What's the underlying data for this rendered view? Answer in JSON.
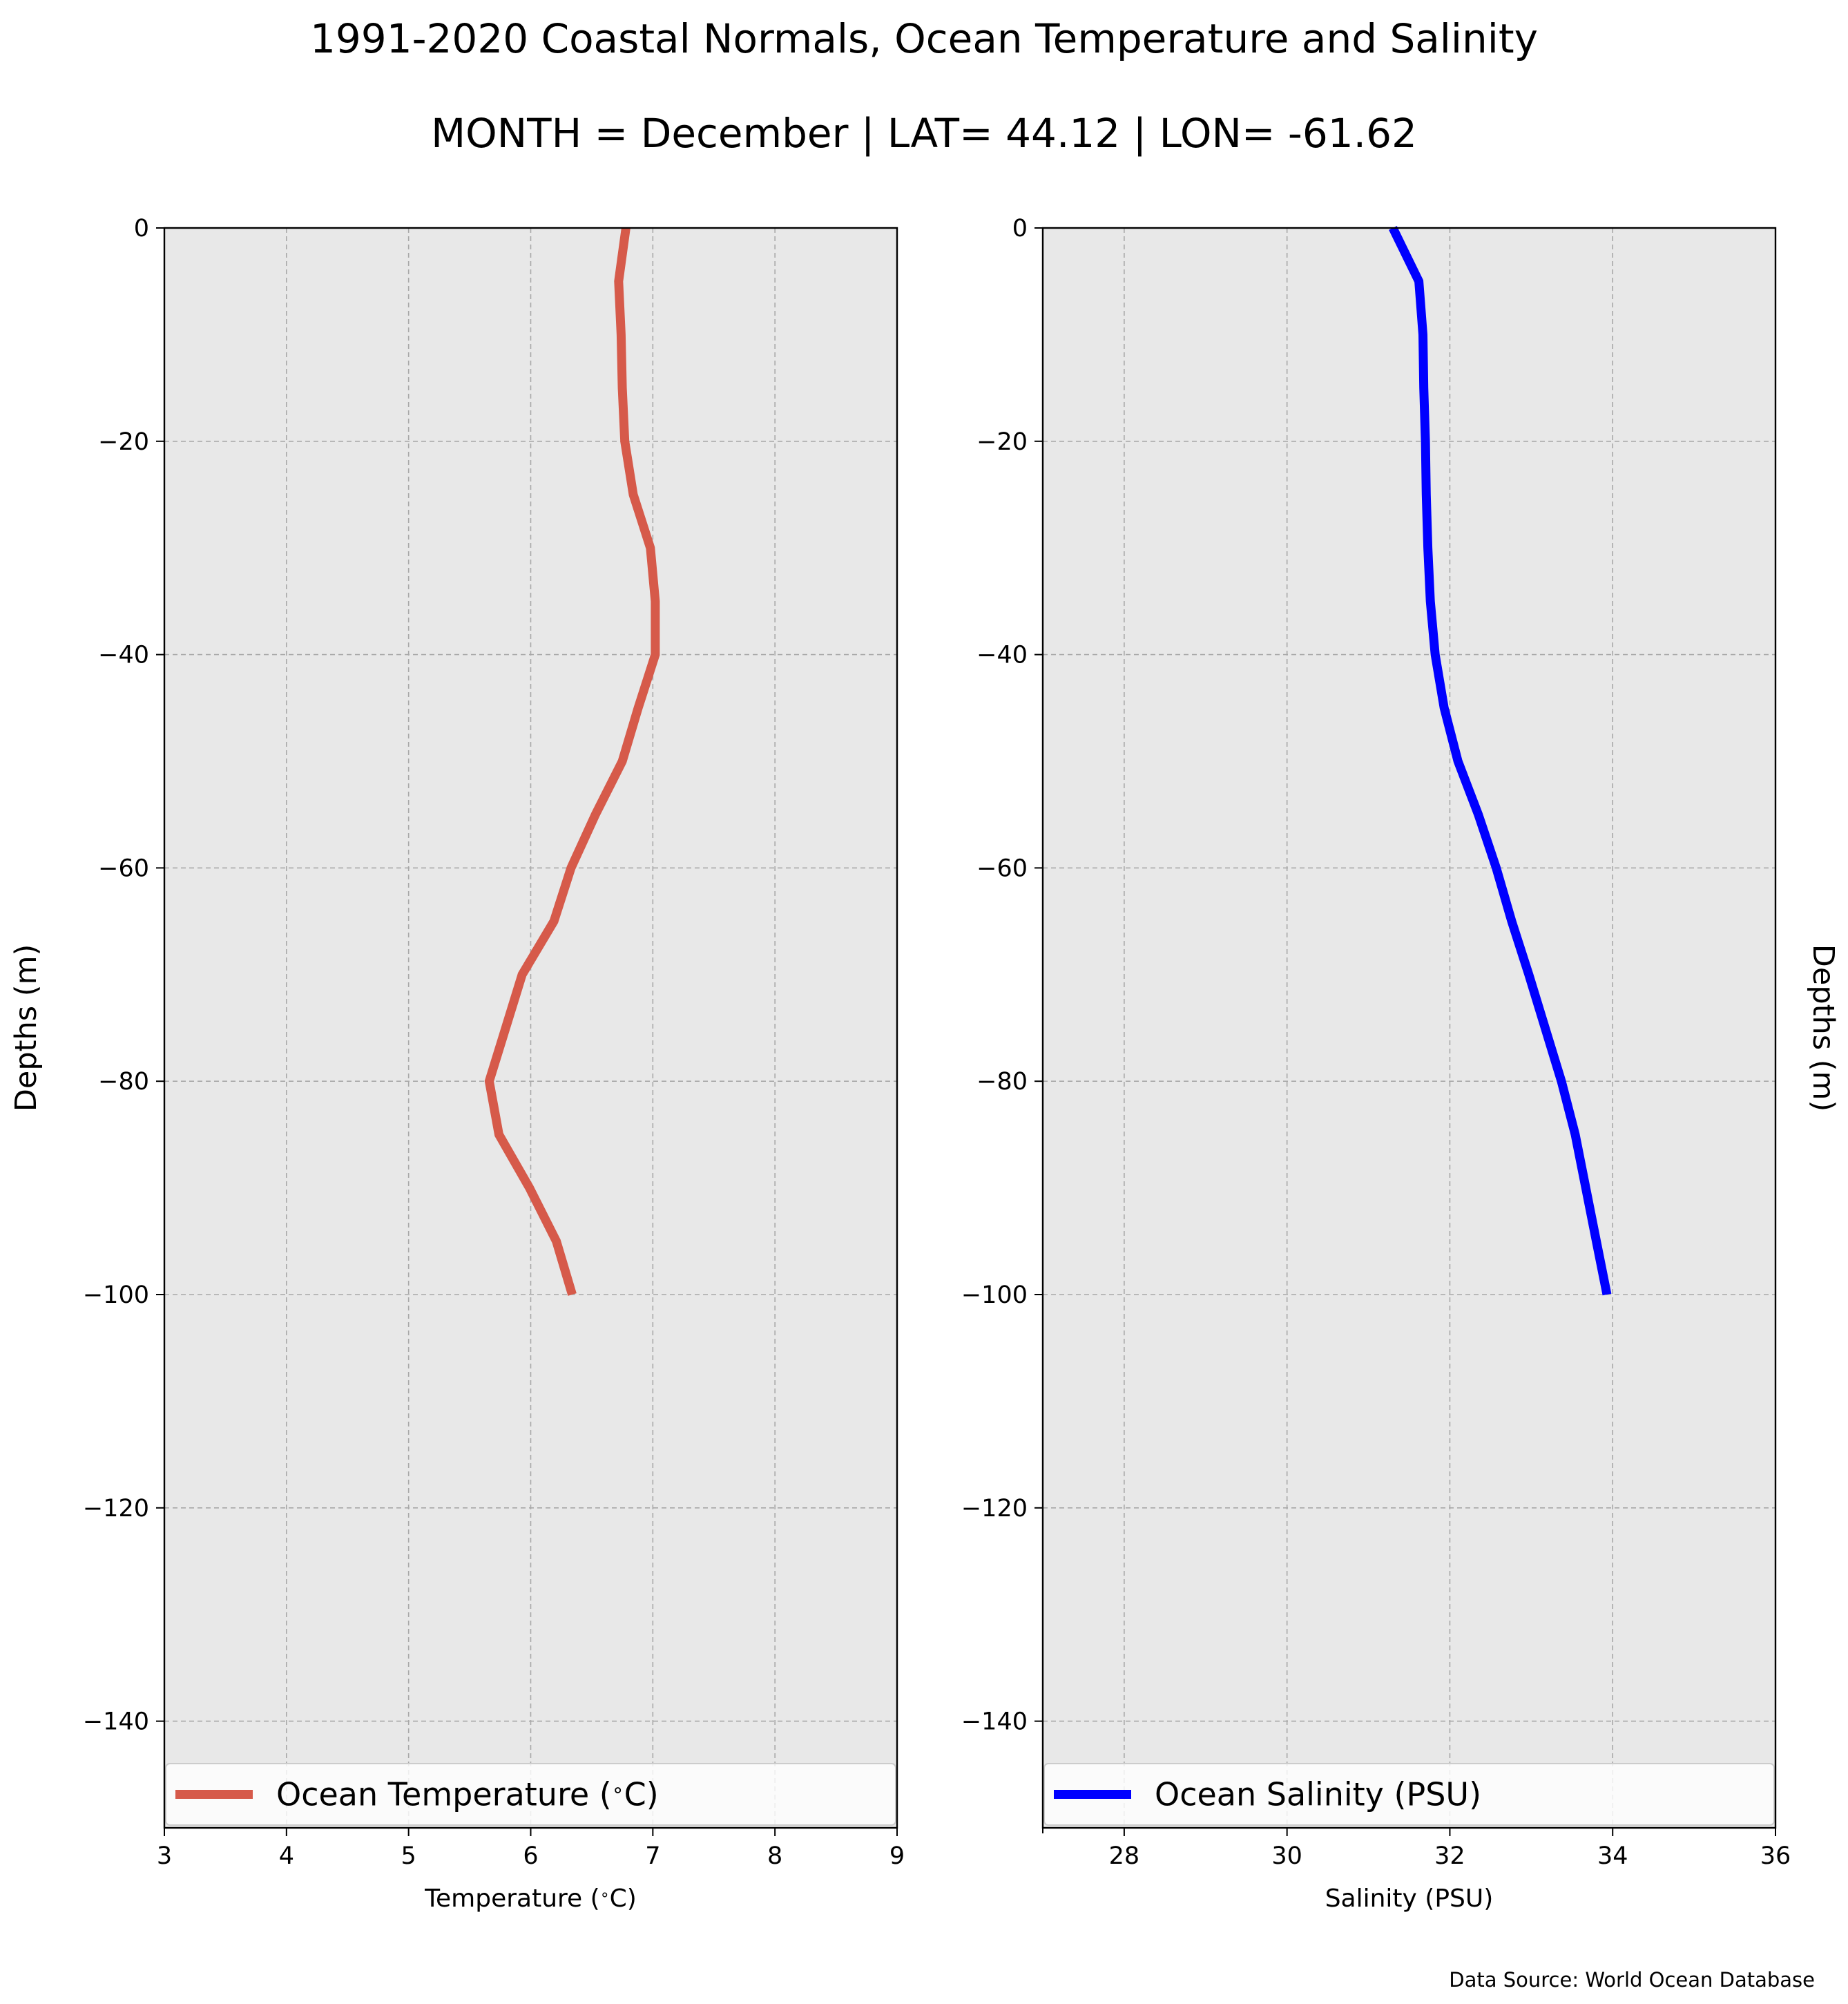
{
  "title": "1991-2020 Coastal Normals, Ocean Temperature and Salinity",
  "subtitle": "MONTH = December | LAT= 44.12 | LON= -61.62",
  "source_note": "Data Source: World Ocean Database",
  "chart_data": [
    {
      "type": "line",
      "xlabel": "Temperature ($^\\circ$C)",
      "ylabel": "Depths (m)",
      "xlim": [
        3,
        9
      ],
      "ylim": [
        -150,
        0
      ],
      "xticks": [
        3,
        4,
        5,
        6,
        7,
        8,
        9
      ],
      "yticks": [
        0,
        -20,
        -40,
        -60,
        -80,
        -100,
        -120,
        -140
      ],
      "grid": true,
      "legend": "bottom",
      "background": "#e8e8e8",
      "series": [
        {
          "name": "Ocean Temperature ($^\\circ$C)",
          "color": "#d65a4a",
          "x": [
            6.78,
            6.72,
            6.74,
            6.75,
            6.77,
            6.84,
            6.98,
            7.02,
            7.02,
            6.88,
            6.75,
            6.53,
            6.33,
            6.19,
            5.93,
            5.66,
            5.74,
            5.99,
            6.21,
            6.34
          ],
          "y": [
            0,
            -5,
            -10,
            -15,
            -20,
            -25,
            -30,
            -35,
            -40,
            -45,
            -50,
            -55,
            -60,
            -65,
            -70,
            -80,
            -85,
            -90,
            -95,
            -100
          ]
        }
      ]
    },
    {
      "type": "line",
      "xlabel": "Salinity (PSU)",
      "ylabel": "Depths (m)",
      "xlim": [
        27,
        36
      ],
      "ylim": [
        -150,
        0
      ],
      "xticks": [
        28,
        30,
        32,
        34,
        36
      ],
      "yticks": [
        0,
        -20,
        -40,
        -60,
        -80,
        -100,
        -120,
        -140
      ],
      "grid": true,
      "legend": "bottom",
      "background": "#e8e8e8",
      "series": [
        {
          "name": "Ocean Salinity (PSU)",
          "color": "#0000ff",
          "x": [
            31.3,
            31.62,
            31.67,
            31.68,
            31.7,
            31.71,
            31.73,
            31.76,
            31.82,
            31.93,
            32.1,
            32.35,
            32.57,
            32.76,
            32.97,
            33.17,
            33.37,
            33.54,
            33.67,
            33.8,
            33.93
          ],
          "y": [
            0,
            -5,
            -10,
            -15,
            -20,
            -25,
            -30,
            -35,
            -40,
            -45,
            -50,
            -55,
            -60,
            -65,
            -70,
            -75,
            -80,
            -85,
            -90,
            -95,
            -100
          ]
        }
      ]
    }
  ]
}
